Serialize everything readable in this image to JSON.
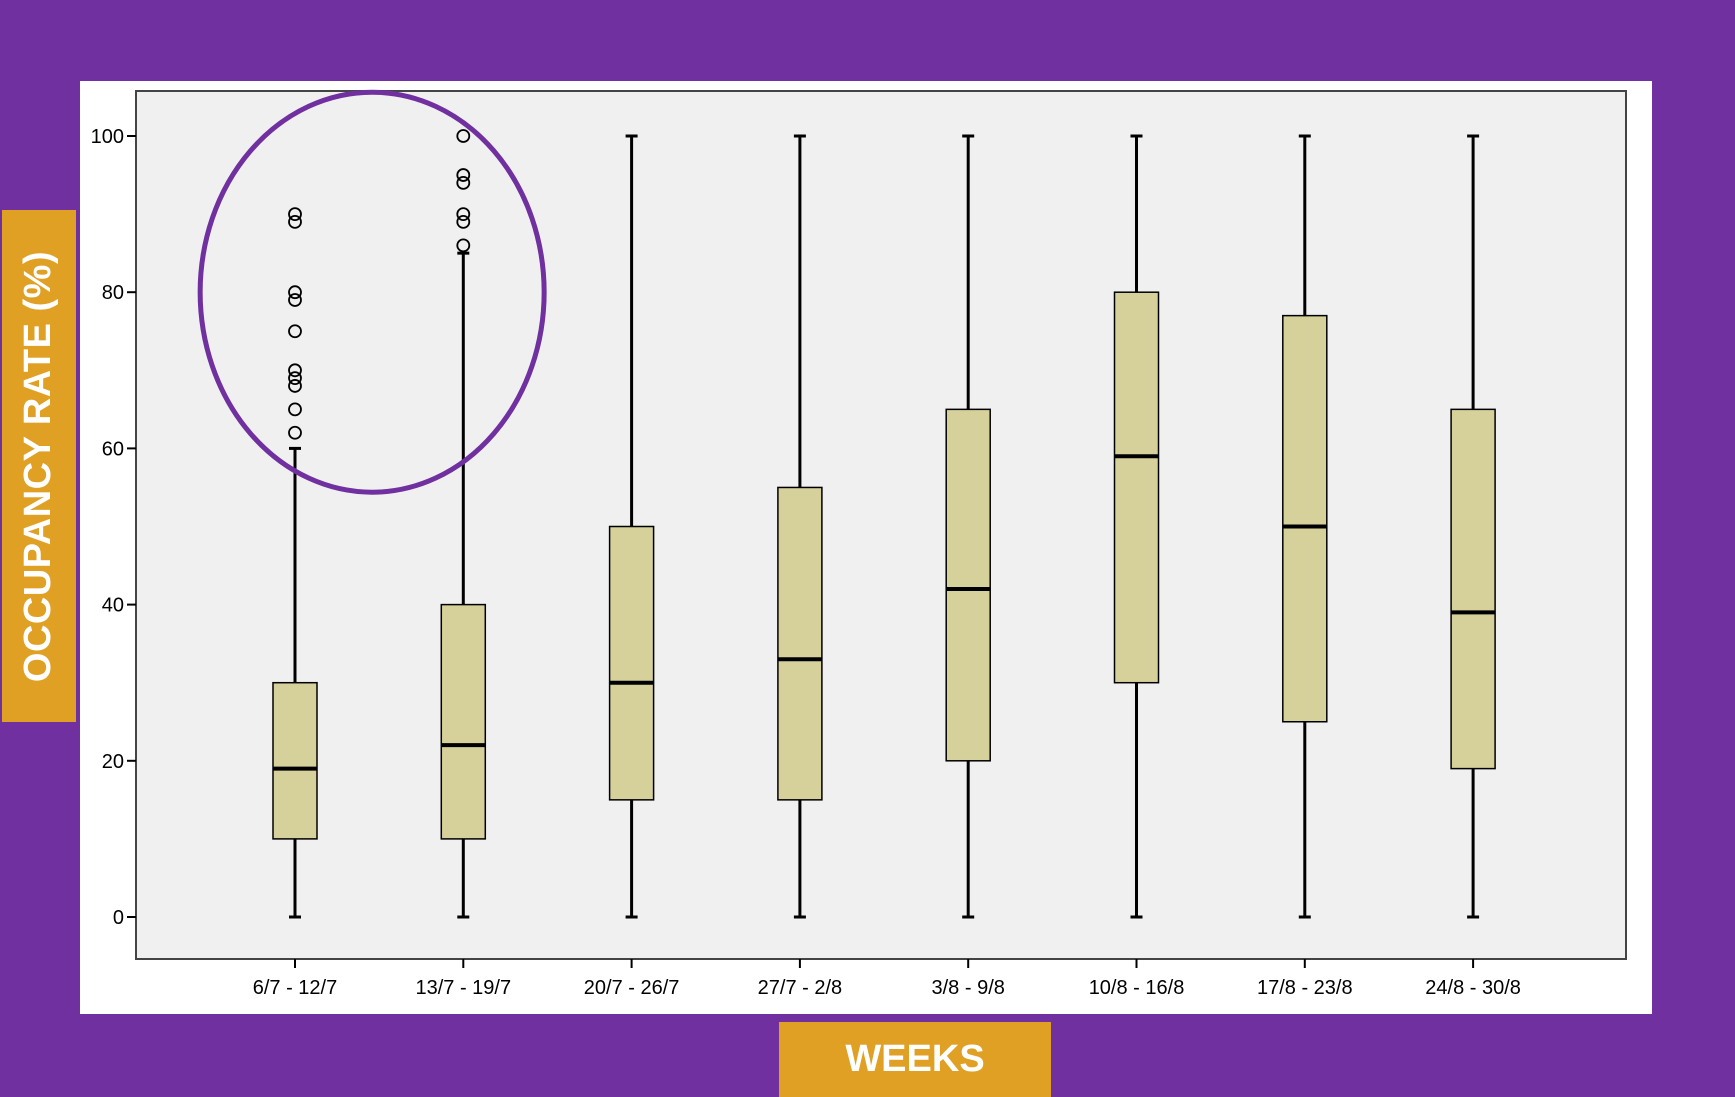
{
  "colors": {
    "frame": "#7030a0",
    "label_bg": "#e0a024",
    "plot_bg": "#f0f0f0",
    "box_fill": "#d6d09a",
    "highlight_ellipse": "#7030a0"
  },
  "chart_data": {
    "type": "box",
    "title": "",
    "xlabel": "WEEKS",
    "ylabel": "OCCUPANCY RATE (%)",
    "ylim": [
      -5,
      105
    ],
    "yticks": [
      0,
      20,
      40,
      60,
      80,
      100
    ],
    "grid": false,
    "categories": [
      "6/7 - 12/7",
      "13/7 - 19/7",
      "20/7 - 26/7",
      "27/7 - 2/8",
      "3/8 - 9/8",
      "10/8 - 16/8",
      "17/8 - 23/8",
      "24/8 - 30/8"
    ],
    "boxes": [
      {
        "min": 0,
        "q1": 10,
        "median": 19,
        "q3": 30,
        "max": 60,
        "outliers": [
          62,
          65,
          68,
          69,
          70,
          75,
          79,
          80,
          89,
          90
        ]
      },
      {
        "min": 0,
        "q1": 10,
        "median": 22,
        "q3": 40,
        "max": 85,
        "outliers": [
          86,
          89,
          90,
          94,
          95,
          100
        ]
      },
      {
        "min": 0,
        "q1": 15,
        "median": 30,
        "q3": 50,
        "max": 100,
        "outliers": []
      },
      {
        "min": 0,
        "q1": 15,
        "median": 33,
        "q3": 55,
        "max": 100,
        "outliers": []
      },
      {
        "min": 0,
        "q1": 20,
        "median": 42,
        "q3": 65,
        "max": 100,
        "outliers": []
      },
      {
        "min": 0,
        "q1": 30,
        "median": 59,
        "q3": 80,
        "max": 100,
        "outliers": []
      },
      {
        "min": 0,
        "q1": 25,
        "median": 50,
        "q3": 77,
        "max": 100,
        "outliers": []
      },
      {
        "min": 0,
        "q1": 19,
        "median": 39,
        "q3": 65,
        "max": 100,
        "outliers": []
      }
    ],
    "annotation": "outliers of the first two weeks circled"
  }
}
